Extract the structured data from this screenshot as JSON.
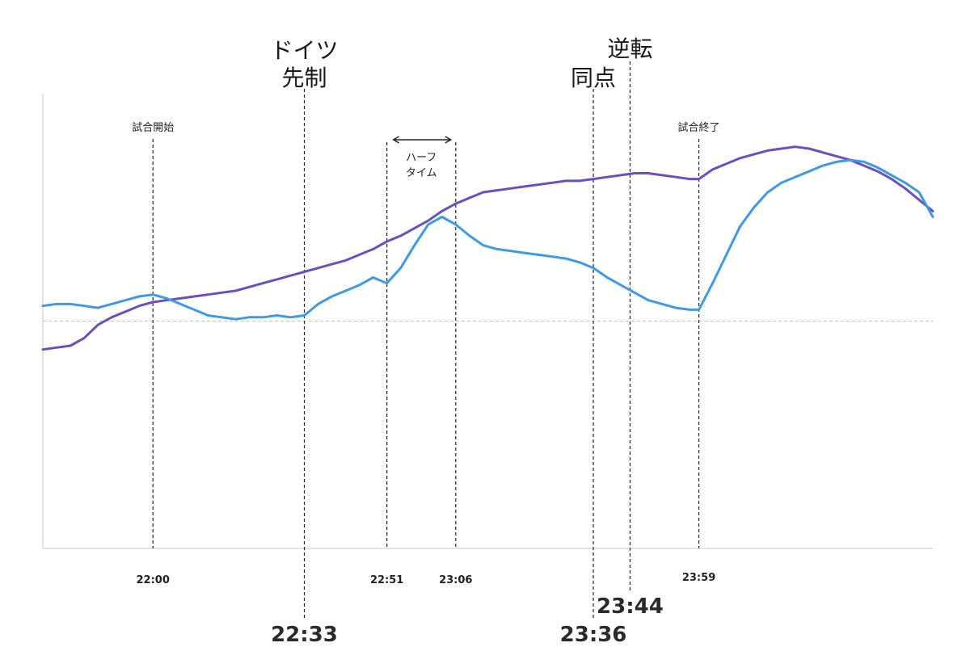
{
  "chart_data": {
    "type": "line",
    "x": [
      "21:36",
      "21:39",
      "21:42",
      "21:45",
      "21:48",
      "21:51",
      "21:54",
      "21:57",
      "22:00",
      "22:03",
      "22:06",
      "22:09",
      "22:12",
      "22:15",
      "22:18",
      "22:21",
      "22:24",
      "22:27",
      "22:30",
      "22:33",
      "22:36",
      "22:39",
      "22:42",
      "22:45",
      "22:48",
      "22:51",
      "22:54",
      "22:57",
      "23:00",
      "23:03",
      "23:06",
      "23:09",
      "23:12",
      "23:15",
      "23:18",
      "23:21",
      "23:24",
      "23:27",
      "23:30",
      "23:33",
      "23:36",
      "23:39",
      "23:42",
      "23:45",
      "23:48",
      "23:51",
      "23:54",
      "23:57",
      "23:59",
      "00:02",
      "00:05",
      "00:08",
      "00:11",
      "00:14",
      "00:17",
      "00:20",
      "00:23",
      "00:26",
      "00:29",
      "00:32",
      "00:35",
      "00:38",
      "00:41",
      "00:44",
      "00:47",
      "00:50"
    ],
    "ylim": [
      -12,
      12
    ],
    "baseline": 0,
    "series": [
      {
        "color": "#6a4fc2",
        "values": [
          -1.5,
          -1.4,
          -1.3,
          -0.9,
          -0.2,
          0.2,
          0.5,
          0.8,
          1.0,
          1.1,
          1.2,
          1.3,
          1.4,
          1.5,
          1.6,
          1.8,
          2.0,
          2.2,
          2.4,
          2.6,
          2.8,
          3.0,
          3.2,
          3.5,
          3.8,
          4.2,
          4.5,
          4.9,
          5.3,
          5.8,
          6.2,
          6.5,
          6.8,
          6.9,
          7.0,
          7.1,
          7.2,
          7.3,
          7.4,
          7.4,
          7.5,
          7.6,
          7.7,
          7.8,
          7.8,
          7.7,
          7.6,
          7.5,
          7.5,
          8.0,
          8.3,
          8.6,
          8.8,
          9.0,
          9.1,
          9.2,
          9.1,
          8.9,
          8.7,
          8.5,
          8.2,
          7.9,
          7.5,
          7.0,
          6.4,
          5.8
        ]
      },
      {
        "color": "#3c9ae6",
        "values": [
          0.8,
          0.9,
          0.9,
          0.8,
          0.7,
          0.9,
          1.1,
          1.3,
          1.4,
          1.2,
          0.9,
          0.6,
          0.3,
          0.2,
          0.1,
          0.2,
          0.2,
          0.3,
          0.2,
          0.3,
          0.9,
          1.3,
          1.6,
          1.9,
          2.3,
          2.0,
          2.8,
          4.0,
          5.1,
          5.5,
          5.1,
          4.5,
          4.0,
          3.8,
          3.7,
          3.6,
          3.5,
          3.4,
          3.3,
          3.1,
          2.8,
          2.3,
          1.9,
          1.5,
          1.1,
          0.9,
          0.7,
          0.6,
          0.6,
          2.0,
          3.5,
          5.0,
          6.0,
          6.8,
          7.3,
          7.6,
          7.9,
          8.2,
          8.4,
          8.5,
          8.4,
          8.1,
          7.7,
          7.3,
          6.8,
          5.5
        ]
      }
    ],
    "events": [
      {
        "time": "22:00",
        "label": "試合開始",
        "emphasis": "small"
      },
      {
        "time": "22:33",
        "label_line1": "ドイツ",
        "label_line2": "先制",
        "emphasis": "large"
      },
      {
        "time": "22:51",
        "emphasis": "small"
      },
      {
        "time": "23:06",
        "emphasis": "small"
      },
      {
        "time": "23:36",
        "label": "同点",
        "emphasis": "large"
      },
      {
        "time": "23:44",
        "label": "逆転",
        "emphasis": "large"
      },
      {
        "time": "23:59",
        "label": "試合終了",
        "emphasis": "small"
      }
    ],
    "halftime": {
      "label_line1": "ハーフ",
      "label_line2": "タイム",
      "from": "22:51",
      "to": "23:06"
    },
    "grid": false,
    "legend": "none"
  }
}
